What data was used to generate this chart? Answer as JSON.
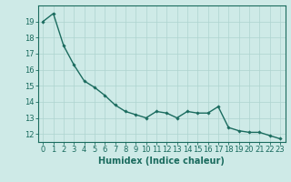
{
  "x": [
    0,
    1,
    2,
    3,
    4,
    5,
    6,
    7,
    8,
    9,
    10,
    11,
    12,
    13,
    14,
    15,
    16,
    17,
    18,
    19,
    20,
    21,
    22,
    23
  ],
  "y": [
    19.0,
    19.5,
    17.5,
    16.3,
    15.3,
    14.9,
    14.4,
    13.8,
    13.4,
    13.2,
    13.0,
    13.4,
    13.3,
    13.0,
    13.4,
    13.3,
    13.3,
    13.7,
    12.4,
    12.2,
    12.1,
    12.1,
    11.9,
    11.7
  ],
  "line_color": "#1a6b5e",
  "marker": "D",
  "marker_size": 1.8,
  "bg_color": "#ceeae7",
  "grid_major_color": "#aed4d0",
  "xlabel": "Humidex (Indice chaleur)",
  "xlabel_fontsize": 7,
  "yticks": [
    12,
    13,
    14,
    15,
    16,
    17,
    18,
    19
  ],
  "ylim": [
    11.5,
    20.0
  ],
  "xlim": [
    -0.5,
    23.5
  ],
  "tick_fontsize": 6,
  "linewidth": 1.0,
  "spine_color": "#1a6b5e"
}
